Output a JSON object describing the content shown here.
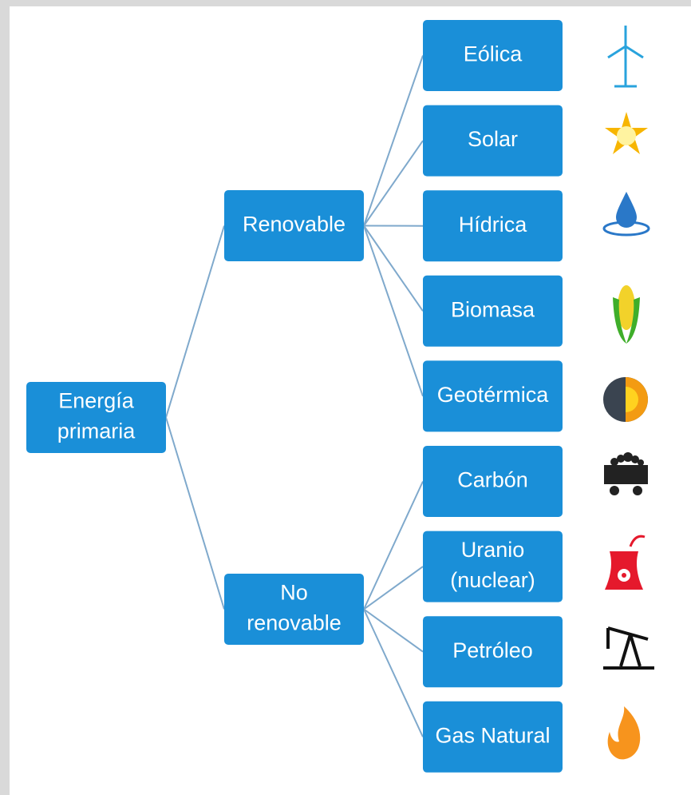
{
  "tree": {
    "label": [
      "Energía",
      "primaria"
    ],
    "children": [
      {
        "label": [
          "Renovable"
        ],
        "children": [
          {
            "label": [
              "Eólica"
            ]
          },
          {
            "label": [
              "Solar"
            ]
          },
          {
            "label": [
              "Hídrica"
            ]
          },
          {
            "label": [
              "Biomasa"
            ]
          },
          {
            "label": [
              "Geotérmica"
            ]
          }
        ]
      },
      {
        "label": [
          "No",
          "renovable"
        ],
        "children": [
          {
            "label": [
              "Carbón"
            ]
          },
          {
            "label": [
              "Uranio",
              "(nuclear)"
            ]
          },
          {
            "label": [
              "Petróleo"
            ]
          },
          {
            "label": [
              "Gas Natural"
            ]
          }
        ]
      }
    ]
  }
}
